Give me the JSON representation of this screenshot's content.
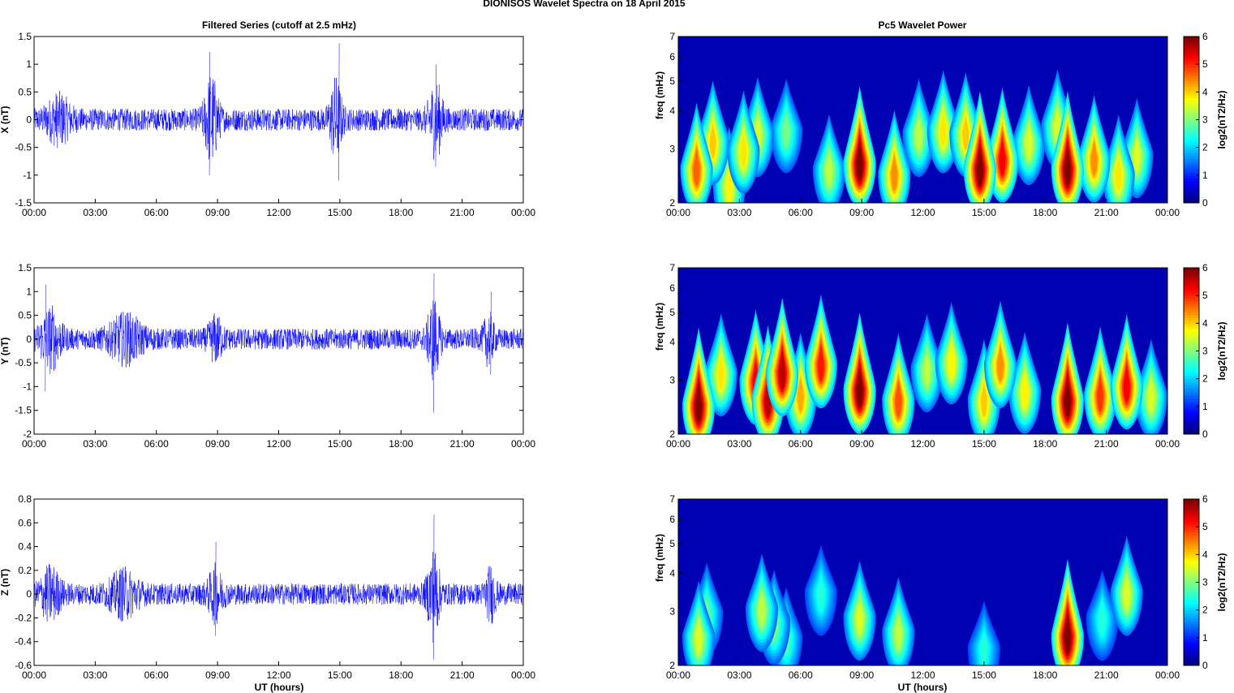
{
  "figure": {
    "suptitle": "DIONISOS Wavelet Spectra on 18 April     2015",
    "left_title": "Filtered Series (cutoff at 2.5 mHz)",
    "right_title": "Pc5 Wavelet Power",
    "xlabel": "UT (hours)",
    "freq_label": "freq (mHz)",
    "colorbar_label": "log2(nT2/Hz)",
    "line_color": "#0000ff",
    "colormap": "jet"
  },
  "chart_data": [
    {
      "type": "line",
      "panel": "X",
      "ylabel": "X (nT)",
      "ylim": [
        -1.5,
        1.5
      ],
      "yticks": [
        -1.5,
        -1,
        -0.5,
        0,
        0.5,
        1,
        1.5
      ],
      "ytick_labels": [
        "-1.5",
        "-1",
        "-0.5",
        "0",
        "0.5",
        "1",
        "1.5"
      ],
      "xlim": [
        0,
        24
      ],
      "xticks": [
        "00:00",
        "03:00",
        "06:00",
        "09:00",
        "12:00",
        "15:00",
        "18:00",
        "21:00",
        "00:00"
      ],
      "noise_amplitude": 0.2,
      "bursts": [
        {
          "t": 8.7,
          "amp": 1.15,
          "width": 0.35
        },
        {
          "t": 14.8,
          "amp": 1.05,
          "width": 0.3
        },
        {
          "t": 19.7,
          "amp": 0.95,
          "width": 0.35
        },
        {
          "t": 1.2,
          "amp": 0.55,
          "width": 0.6
        }
      ],
      "peaks": [
        {
          "t": 8.6,
          "min": -1.0,
          "max": 1.22
        },
        {
          "t": 14.95,
          "min": -1.1,
          "max": 1.38
        },
        {
          "t": 19.7,
          "min": -0.85,
          "max": 1.0
        }
      ]
    },
    {
      "type": "line",
      "panel": "Y",
      "ylabel": "Y (nT)",
      "ylim": [
        -2,
        1.5
      ],
      "yticks": [
        -2,
        -1.5,
        -1,
        -0.5,
        0,
        0.5,
        1,
        1.5
      ],
      "ytick_labels": [
        "-2",
        "-1.5",
        "-1",
        "-0.5",
        "0",
        "0.5",
        "1",
        "1.5"
      ],
      "xlim": [
        0,
        24
      ],
      "xticks": [
        "00:00",
        "03:00",
        "06:00",
        "09:00",
        "12:00",
        "15:00",
        "18:00",
        "21:00",
        "00:00"
      ],
      "noise_amplitude": 0.22,
      "bursts": [
        {
          "t": 0.8,
          "amp": 0.9,
          "width": 0.5
        },
        {
          "t": 4.5,
          "amp": 0.65,
          "width": 0.8
        },
        {
          "t": 8.9,
          "amp": 0.6,
          "width": 0.35
        },
        {
          "t": 19.6,
          "amp": 1.2,
          "width": 0.3
        },
        {
          "t": 22.3,
          "amp": 0.7,
          "width": 0.25
        }
      ],
      "peaks": [
        {
          "t": 0.55,
          "min": -1.1,
          "max": 1.15
        },
        {
          "t": 19.6,
          "min": -1.55,
          "max": 1.38
        },
        {
          "t": 22.4,
          "min": -0.75,
          "max": 1.0
        }
      ]
    },
    {
      "type": "line",
      "panel": "Z",
      "ylabel": "Z (nT)",
      "ylim": [
        -0.6,
        0.8
      ],
      "yticks": [
        -0.6,
        -0.4,
        -0.2,
        0,
        0.2,
        0.4,
        0.6,
        0.8
      ],
      "ytick_labels": [
        "-0.6",
        "-0.4",
        "-0.2",
        "0",
        "0.2",
        "0.4",
        "0.6",
        "0.8"
      ],
      "xlim": [
        0,
        24
      ],
      "xticks": [
        "00:00",
        "03:00",
        "06:00",
        "09:00",
        "12:00",
        "15:00",
        "18:00",
        "21:00",
        "00:00"
      ],
      "noise_amplitude": 0.09,
      "bursts": [
        {
          "t": 0.8,
          "amp": 0.3,
          "width": 0.5
        },
        {
          "t": 4.4,
          "amp": 0.25,
          "width": 0.7
        },
        {
          "t": 8.9,
          "amp": 0.3,
          "width": 0.35
        },
        {
          "t": 19.6,
          "amp": 0.55,
          "width": 0.3
        },
        {
          "t": 22.4,
          "amp": 0.3,
          "width": 0.25
        }
      ],
      "peaks": [
        {
          "t": 19.6,
          "min": -0.55,
          "max": 0.67
        },
        {
          "t": 8.9,
          "min": -0.35,
          "max": 0.44
        }
      ]
    },
    {
      "type": "heatmap",
      "panel": "X",
      "ylabel": "freq (mHz)",
      "ylim": [
        2,
        7
      ],
      "yscale": "log",
      "yticks": [
        2,
        3,
        4,
        5,
        6,
        7
      ],
      "xlim": [
        0,
        24
      ],
      "xticks": [
        "00:00",
        "03:00",
        "06:00",
        "09:00",
        "12:00",
        "15:00",
        "18:00",
        "21:00",
        "00:00"
      ],
      "colorbar": {
        "label": "log2(nT2/Hz)",
        "range": [
          0,
          6
        ],
        "ticks": [
          0,
          1,
          2,
          3,
          4,
          5,
          6
        ]
      },
      "blobs": [
        {
          "t": 0.9,
          "f": 2.6,
          "power": 4.5
        },
        {
          "t": 1.7,
          "f": 3.2,
          "power": 3.8
        },
        {
          "t": 2.5,
          "f": 2.3,
          "power": 3.5
        },
        {
          "t": 3.2,
          "f": 3.0,
          "power": 3.6
        },
        {
          "t": 3.9,
          "f": 3.4,
          "power": 3.2
        },
        {
          "t": 5.3,
          "f": 3.5,
          "power": 2.5
        },
        {
          "t": 7.4,
          "f": 2.6,
          "power": 3.0
        },
        {
          "t": 8.9,
          "f": 2.7,
          "power": 6.0
        },
        {
          "t": 10.6,
          "f": 2.5,
          "power": 4.2
        },
        {
          "t": 11.8,
          "f": 3.4,
          "power": 3.0
        },
        {
          "t": 13.0,
          "f": 3.5,
          "power": 3.6
        },
        {
          "t": 14.1,
          "f": 3.4,
          "power": 3.8
        },
        {
          "t": 14.8,
          "f": 2.6,
          "power": 6.0
        },
        {
          "t": 15.9,
          "f": 2.8,
          "power": 5.2
        },
        {
          "t": 17.2,
          "f": 3.2,
          "power": 3.2
        },
        {
          "t": 18.6,
          "f": 3.6,
          "power": 3.2
        },
        {
          "t": 19.1,
          "f": 2.6,
          "power": 6.0
        },
        {
          "t": 20.4,
          "f": 2.8,
          "power": 4.2
        },
        {
          "t": 21.6,
          "f": 2.5,
          "power": 3.6
        },
        {
          "t": 22.5,
          "f": 2.9,
          "power": 3.2
        }
      ]
    },
    {
      "type": "heatmap",
      "panel": "Y",
      "ylabel": "freq (mHz)",
      "ylim": [
        2,
        7
      ],
      "yscale": "log",
      "yticks": [
        2,
        3,
        4,
        5,
        6,
        7
      ],
      "xlim": [
        0,
        24
      ],
      "xticks": [
        "00:00",
        "03:00",
        "06:00",
        "09:00",
        "12:00",
        "15:00",
        "18:00",
        "21:00",
        "00:00"
      ],
      "colorbar": {
        "label": "log2(nT2/Hz)",
        "range": [
          0,
          6
        ],
        "ticks": [
          0,
          1,
          2,
          3,
          4,
          5,
          6
        ]
      },
      "blobs": [
        {
          "t": 1.0,
          "f": 2.5,
          "power": 6.0
        },
        {
          "t": 2.1,
          "f": 3.2,
          "power": 3.6
        },
        {
          "t": 3.8,
          "f": 3.0,
          "power": 5.2
        },
        {
          "t": 4.4,
          "f": 2.6,
          "power": 5.6
        },
        {
          "t": 5.1,
          "f": 3.2,
          "power": 5.6
        },
        {
          "t": 6.0,
          "f": 2.7,
          "power": 4.0
        },
        {
          "t": 7.0,
          "f": 3.4,
          "power": 5.0
        },
        {
          "t": 8.9,
          "f": 2.8,
          "power": 6.0
        },
        {
          "t": 10.8,
          "f": 2.6,
          "power": 4.6
        },
        {
          "t": 12.2,
          "f": 3.3,
          "power": 3.0
        },
        {
          "t": 13.4,
          "f": 3.5,
          "power": 3.5
        },
        {
          "t": 15.0,
          "f": 2.6,
          "power": 3.8
        },
        {
          "t": 15.8,
          "f": 3.4,
          "power": 4.2
        },
        {
          "t": 17.0,
          "f": 2.8,
          "power": 3.5
        },
        {
          "t": 19.1,
          "f": 2.6,
          "power": 6.0
        },
        {
          "t": 20.7,
          "f": 2.7,
          "power": 4.8
        },
        {
          "t": 22.0,
          "f": 2.9,
          "power": 5.2
        },
        {
          "t": 23.2,
          "f": 2.7,
          "power": 3.2
        }
      ]
    },
    {
      "type": "heatmap",
      "panel": "Z",
      "ylabel": "freq (mHz)",
      "ylim": [
        2,
        7
      ],
      "yscale": "log",
      "yticks": [
        2,
        3,
        4,
        5,
        6,
        7
      ],
      "xlim": [
        0,
        24
      ],
      "xticks": [
        "00:00",
        "03:00",
        "06:00",
        "09:00",
        "12:00",
        "15:00",
        "18:00",
        "21:00",
        "00:00"
      ],
      "colorbar": {
        "label": "log2(nT2/Hz)",
        "range": [
          0,
          6
        ],
        "ticks": [
          0,
          1,
          2,
          3,
          4,
          5,
          6
        ]
      },
      "blobs": [
        {
          "t": 1.0,
          "f": 2.5,
          "power": 3.2
        },
        {
          "t": 1.4,
          "f": 3.0,
          "power": 2.4
        },
        {
          "t": 4.1,
          "f": 3.1,
          "power": 3.0
        },
        {
          "t": 4.7,
          "f": 2.8,
          "power": 2.6
        },
        {
          "t": 5.3,
          "f": 2.5,
          "power": 2.3
        },
        {
          "t": 7.0,
          "f": 3.5,
          "power": 2.0
        },
        {
          "t": 8.9,
          "f": 2.9,
          "power": 3.2
        },
        {
          "t": 10.8,
          "f": 2.6,
          "power": 3.0
        },
        {
          "t": 15.0,
          "f": 2.3,
          "power": 2.0
        },
        {
          "t": 19.1,
          "f": 2.5,
          "power": 6.0
        },
        {
          "t": 20.8,
          "f": 2.9,
          "power": 2.0
        },
        {
          "t": 22.0,
          "f": 3.5,
          "power": 3.2
        }
      ]
    }
  ]
}
